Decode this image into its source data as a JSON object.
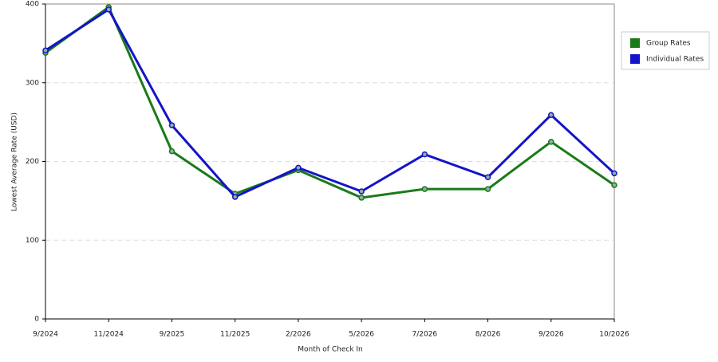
{
  "chart_data": {
    "type": "line",
    "x_label": "Month of Check In",
    "y_label": "Lowest Average Rate (USD)",
    "categories": [
      "9/2024",
      "11/2024",
      "9/2025",
      "11/2025",
      "2/2026",
      "5/2026",
      "7/2026",
      "8/2026",
      "9/2026",
      "10/2026"
    ],
    "series": [
      {
        "name": "Group Rates",
        "color": "#1a7a1a",
        "values": [
          338,
          396,
          213,
          159,
          189,
          154,
          165,
          165,
          225,
          170
        ]
      },
      {
        "name": "Individual Rates",
        "color": "#1414c8",
        "values": [
          341,
          393,
          246,
          155,
          192,
          162,
          209,
          180,
          259,
          185
        ]
      }
    ],
    "ylim": [
      0,
      400
    ],
    "yticks": [
      0,
      100,
      200,
      300,
      400
    ],
    "grid": true,
    "legend": "right"
  }
}
